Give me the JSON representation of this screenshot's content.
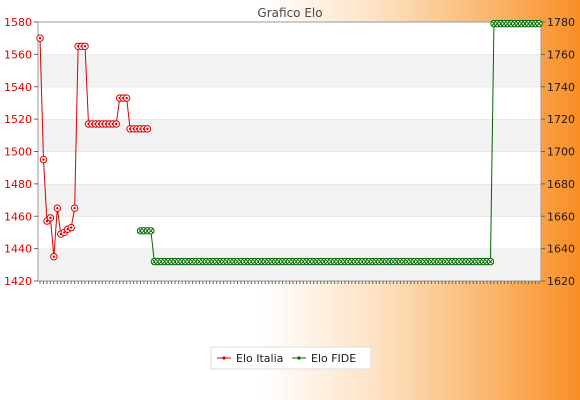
{
  "title": "Grafico Elo",
  "colors": {
    "italia": "#dd0000",
    "fide": "#006600"
  },
  "chart_data": {
    "type": "line",
    "title": "Grafico Elo",
    "legend_position": "bottom",
    "grid": true,
    "n_points": 145,
    "y_left": {
      "min": 1420,
      "max": 1580,
      "ticks": [
        1420,
        1440,
        1460,
        1480,
        1500,
        1520,
        1540,
        1560,
        1580
      ]
    },
    "y_right": {
      "min": 1620,
      "max": 1780,
      "ticks": [
        1620,
        1640,
        1660,
        1680,
        1700,
        1720,
        1740,
        1760,
        1780
      ]
    },
    "series": [
      {
        "name": "Elo Italia",
        "axis": "left",
        "color": "#dd0000",
        "x": [
          0,
          1,
          2,
          3,
          4,
          5,
          6,
          7,
          8,
          9,
          10,
          11,
          12,
          13,
          14,
          15,
          16,
          17,
          18,
          19,
          20,
          21,
          22,
          23,
          24,
          25,
          26,
          27,
          28,
          29,
          30,
          31
        ],
        "values": [
          1570,
          1495,
          1457,
          1459,
          1435,
          1465,
          1449,
          1450,
          1452,
          1453,
          1465,
          1565,
          1565,
          1565,
          1517,
          1517,
          1517,
          1517,
          1517,
          1517,
          1517,
          1517,
          1517,
          1533,
          1533,
          1533,
          1514,
          1514,
          1514,
          1514,
          1514,
          1514
        ]
      },
      {
        "name": "Elo FIDE",
        "axis": "right",
        "color": "#006600",
        "x": [
          29,
          30,
          31,
          32,
          33,
          130,
          131,
          132,
          133,
          134,
          135,
          136,
          137,
          138,
          139,
          140,
          141,
          142,
          143,
          144
        ],
        "values": [
          1651,
          1651,
          1651,
          1651,
          1632,
          1632,
          1779,
          1779,
          1779,
          1779,
          1779,
          1779,
          1779,
          1779,
          1779,
          1779,
          1779,
          1779,
          1779,
          1779
        ],
        "constant_from_index": 33,
        "constant_to_index": 130,
        "constant_value": 1632
      }
    ]
  }
}
